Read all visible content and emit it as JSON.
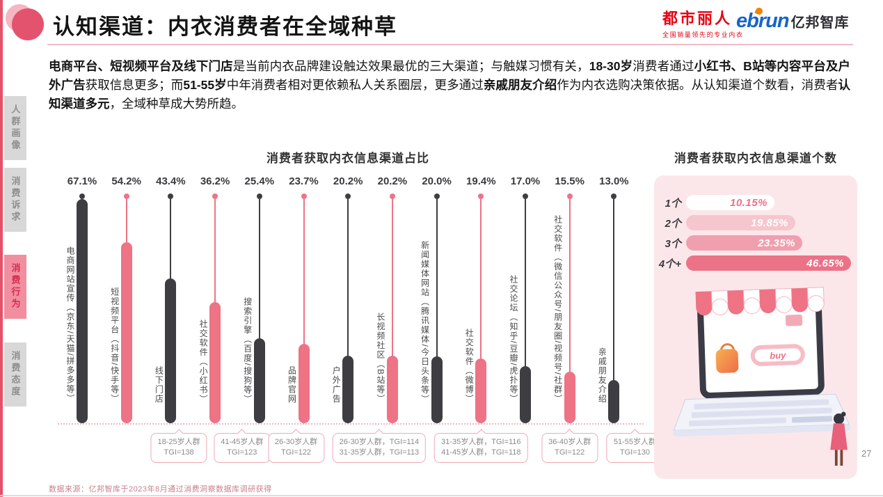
{
  "colors": {
    "accent_pink": "#ec7287",
    "bar_pink": "#ed7385",
    "bar_dark": "#3d3d42",
    "panel_bg": "#fbe7ea",
    "brand_red": "#e60012",
    "ebrun_blue": "#1565c8",
    "ebrun_orange": "#f08300",
    "count_bar_colors": [
      "#ffffff",
      "#f6c6ce",
      "#f09fae",
      "#ec7287"
    ],
    "count_text_colors": [
      "#ec7287",
      "#ffffff",
      "#ffffff",
      "#ffffff"
    ]
  },
  "header": {
    "title": "认知渠道：内衣消费者在全域种草",
    "brand1_name": "都市丽人",
    "brand1_tagline": "全国销量领先的专业内衣",
    "brand2_name": "ebrun",
    "brand2_suffix": "亿邦智库"
  },
  "sidebar": {
    "items": [
      {
        "label": "人群画像",
        "active": false
      },
      {
        "label": "消费诉求",
        "active": false
      },
      {
        "label": "消费行为",
        "active": true
      },
      {
        "label": "消费态度",
        "active": false
      }
    ]
  },
  "intro": {
    "segments": [
      {
        "text": "电商平台、短视频平台及线下门店",
        "bold": true
      },
      {
        "text": "是当前内衣品牌建设触达效果最优的三大渠道；与触媒习惯有关，",
        "bold": false
      },
      {
        "text": "18-30岁",
        "bold": true
      },
      {
        "text": "消费者通过",
        "bold": false
      },
      {
        "text": "小红书、B站等内容平台及户外广告",
        "bold": true
      },
      {
        "text": "获取信息更多；而",
        "bold": false
      },
      {
        "text": "51-55岁",
        "bold": true
      },
      {
        "text": "中年消费者相对更依赖私人关系圈层，更多通过",
        "bold": false
      },
      {
        "text": "亲戚朋友介绍",
        "bold": true
      },
      {
        "text": "作为内衣选购决策依据。从认知渠道个数看，消费者",
        "bold": false
      },
      {
        "text": "认知渠道多元",
        "bold": true
      },
      {
        "text": "，全域种草成大势所趋。",
        "bold": false
      }
    ]
  },
  "chart_data": [
    {
      "type": "bar",
      "title": "消费者获取内衣信息渠道占比",
      "categories": [
        "电商网站宣传（京东/天猫/拼多多等）",
        "短视频平台（抖音/快手等）",
        "线下门店",
        "社交软件（小红书）",
        "搜索引擎（百度/搜狗等）",
        "品牌官网",
        "户外广告",
        "长视频社区（B站等）",
        "新闻媒体网站（腾讯媒体/今日头条等）",
        "社交软件（微博）",
        "社交论坛（知乎/豆瓣/虎扑等）",
        "社交软件（微信公众号/朋友圈/视频号/社群）",
        "亲戚朋友介绍"
      ],
      "values": [
        67.1,
        54.2,
        43.4,
        36.2,
        25.4,
        23.7,
        20.2,
        20.2,
        20.0,
        19.4,
        17.0,
        15.5,
        13.0
      ],
      "value_labels": [
        "67.1%",
        "54.2%",
        "43.4%",
        "36.2%",
        "25.4%",
        "23.7%",
        "20.2%",
        "20.2%",
        "20.0%",
        "19.4%",
        "17.0%",
        "15.5%",
        "13.0%"
      ],
      "ylim": [
        0,
        70
      ],
      "grid": false,
      "legend": "none",
      "color_pattern": "alternating dark/pink",
      "annotations": [
        {
          "col": 3,
          "lines": [
            "18-25岁人群",
            "TGI=138"
          ]
        },
        {
          "col": 4,
          "lines": [
            "41-45岁人群",
            "TGI=123"
          ]
        },
        {
          "col": 5,
          "lines": [
            "26-30岁人群",
            "TGI=122"
          ]
        },
        {
          "col": 7,
          "lines": [
            "26-30岁人群，TGI=114",
            "31-35岁人群，TGI=113"
          ]
        },
        {
          "col": 9,
          "lines": [
            "31-35岁人群，TGI=116",
            "41-45岁人群，TGI=118"
          ]
        },
        {
          "col": 11,
          "lines": [
            "36-40岁人群",
            "TGI=122"
          ]
        },
        {
          "col": 12,
          "lines": [
            "51-55岁人群",
            "TGI=130"
          ]
        }
      ]
    },
    {
      "type": "bar",
      "title": "消费者获取内衣信息渠道个数",
      "categories": [
        "1个",
        "2个",
        "3个",
        "4个+"
      ],
      "values": [
        10.15,
        19.85,
        23.35,
        46.65
      ],
      "value_labels": [
        "10.15%",
        "19.85%",
        "23.35%",
        "46.65%"
      ],
      "orientation": "horizontal",
      "legend": "none"
    }
  ],
  "laptop": {
    "buy_label": "buy"
  },
  "footer": {
    "source": "数据来源：亿邦智库于2023年8月通过消费洞察数据库调研获得",
    "page_number": "27"
  }
}
